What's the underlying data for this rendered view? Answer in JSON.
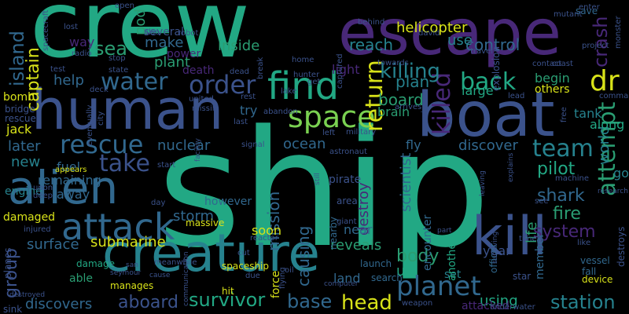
{
  "palette": {
    "background": "#000000",
    "teal": "#22a884",
    "green": "#2a9d72",
    "lightgreen": "#7ad151",
    "yellow": "#d8e219",
    "blue": "#31688e",
    "indigo": "#3b528b",
    "purple": "#482878",
    "darkpurple": "#440154",
    "cyan": "#26828e"
  },
  "words": [
    {
      "text": "ship",
      "c": "teal"
    },
    {
      "text": "crew",
      "c": "teal"
    },
    {
      "text": "escape",
      "c": "purple"
    },
    {
      "text": "boat",
      "c": "indigo"
    },
    {
      "text": "human",
      "c": "indigo"
    },
    {
      "text": "creature",
      "c": "cyan"
    },
    {
      "text": "find",
      "c": "teal"
    },
    {
      "text": "kill",
      "c": "indigo"
    },
    {
      "text": "alien",
      "c": "blue"
    },
    {
      "text": "attack",
      "c": "blue"
    },
    {
      "text": "space",
      "c": "lightgreen"
    },
    {
      "text": "planet",
      "c": "blue"
    },
    {
      "text": "rescue",
      "c": "blue"
    },
    {
      "text": "take",
      "c": "indigo"
    },
    {
      "text": "water",
      "c": "blue"
    },
    {
      "text": "order",
      "c": "indigo"
    },
    {
      "text": "back",
      "c": "teal"
    },
    {
      "text": "dr",
      "c": "yellow"
    },
    {
      "text": "team",
      "c": "cyan"
    },
    {
      "text": "killed",
      "c": "purple"
    },
    {
      "text": "return",
      "c": "yellow"
    },
    {
      "text": "attempt",
      "c": "green"
    },
    {
      "text": "crash",
      "c": "purple"
    },
    {
      "text": "killing",
      "c": "cyan"
    },
    {
      "text": "sea",
      "c": "green"
    },
    {
      "text": "island",
      "c": "blue"
    },
    {
      "text": "captain",
      "c": "yellow"
    },
    {
      "text": "group",
      "c": "indigo"
    },
    {
      "text": "mission",
      "c": "blue"
    },
    {
      "text": "causing",
      "c": "blue"
    },
    {
      "text": "survivor",
      "c": "teal"
    },
    {
      "text": "base",
      "c": "blue"
    },
    {
      "text": "head",
      "c": "yellow"
    },
    {
      "text": "station",
      "c": "cyan"
    },
    {
      "text": "aboard",
      "c": "indigo"
    },
    {
      "text": "system",
      "c": "purple"
    },
    {
      "text": "body",
      "c": "green"
    },
    {
      "text": "fire",
      "c": "green"
    },
    {
      "text": "shark",
      "c": "blue"
    },
    {
      "text": "pilot",
      "c": "teal"
    },
    {
      "text": "board",
      "c": "green"
    },
    {
      "text": "plan",
      "c": "cyan"
    },
    {
      "text": "submarine",
      "c": "yellow"
    },
    {
      "text": "storm",
      "c": "blue"
    },
    {
      "text": "control",
      "c": "blue"
    },
    {
      "text": "reach",
      "c": "cyan"
    },
    {
      "text": "helicopter",
      "c": "yellow"
    },
    {
      "text": "inside",
      "c": "green"
    },
    {
      "text": "make",
      "c": "blue"
    },
    {
      "text": "pod",
      "c": "green"
    },
    {
      "text": "plant",
      "c": "green"
    },
    {
      "text": "help",
      "c": "blue"
    },
    {
      "text": "later",
      "c": "blue"
    },
    {
      "text": "new",
      "c": "cyan"
    },
    {
      "text": "surface",
      "c": "blue"
    },
    {
      "text": "discovers",
      "c": "blue"
    },
    {
      "text": "ocean",
      "c": "blue"
    },
    {
      "text": "nuclear",
      "c": "blue"
    },
    {
      "text": "destroy",
      "c": "purple"
    },
    {
      "text": "scientist",
      "c": "blue"
    },
    {
      "text": "using",
      "c": "teal"
    },
    {
      "text": "life",
      "c": "green"
    },
    {
      "text": "reveals",
      "c": "green"
    },
    {
      "text": "world",
      "c": "cyan"
    },
    {
      "text": "tank",
      "c": "cyan"
    },
    {
      "text": "along",
      "c": "teal"
    },
    {
      "text": "begin",
      "c": "green"
    },
    {
      "text": "large",
      "c": "teal"
    },
    {
      "text": "discover",
      "c": "blue"
    },
    {
      "text": "use",
      "c": "cyan"
    },
    {
      "text": "brain",
      "c": "green"
    },
    {
      "text": "soon",
      "c": "yellow"
    },
    {
      "text": "force",
      "c": "yellow"
    },
    {
      "text": "land",
      "c": "blue"
    },
    {
      "text": "near",
      "c": "blue"
    },
    {
      "text": "us",
      "c": "teal"
    },
    {
      "text": "set",
      "c": "cyan"
    },
    {
      "text": "another",
      "c": "teal"
    },
    {
      "text": "member",
      "c": "blue"
    },
    {
      "text": "year",
      "c": "indigo"
    },
    {
      "text": "damaged",
      "c": "yellow"
    },
    {
      "text": "remaining",
      "c": "blue"
    },
    {
      "text": "away",
      "c": "blue"
    },
    {
      "text": "fuel",
      "c": "blue"
    },
    {
      "text": "however",
      "c": "blue"
    },
    {
      "text": "damage",
      "c": "teal"
    },
    {
      "text": "able",
      "c": "green"
    },
    {
      "text": "several",
      "c": "indigo"
    },
    {
      "text": "way",
      "c": "purple"
    },
    {
      "text": "power",
      "c": "purple"
    },
    {
      "text": "death",
      "c": "purple"
    },
    {
      "text": "light",
      "c": "purple"
    },
    {
      "text": "try",
      "c": "blue"
    },
    {
      "text": "fly",
      "c": "blue"
    },
    {
      "text": "encounter",
      "c": "blue"
    },
    {
      "text": "others",
      "c": "yellow"
    },
    {
      "text": "jack",
      "c": "yellow"
    },
    {
      "text": "bomb",
      "c": "yellow"
    },
    {
      "text": "engine",
      "c": "cyan"
    },
    {
      "text": "massive",
      "c": "yellow"
    },
    {
      "text": "spaceship",
      "c": "yellow"
    },
    {
      "text": "manages",
      "c": "yellow"
    },
    {
      "text": "launch",
      "c": "blue"
    },
    {
      "text": "search",
      "c": "blue"
    },
    {
      "text": "attacked",
      "c": "purple"
    },
    {
      "text": "officer",
      "c": "blue"
    },
    {
      "text": "go",
      "c": "cyan"
    },
    {
      "text": "fall",
      "c": "blue"
    },
    {
      "text": "device",
      "c": "yellow"
    },
    {
      "text": "vessel",
      "c": "blue"
    },
    {
      "text": "destroys",
      "c": "indigo"
    },
    {
      "text": "hit",
      "c": "yellow"
    },
    {
      "text": "nearby",
      "c": "blue"
    },
    {
      "text": "planes",
      "c": "indigo"
    },
    {
      "text": "save",
      "c": "blue"
    },
    {
      "text": "mutant",
      "c": "indigo"
    },
    {
      "text": "david",
      "c": "indigo"
    },
    {
      "text": "robot",
      "c": "indigo"
    },
    {
      "text": "towards",
      "c": "indigo"
    },
    {
      "text": "arrives",
      "c": "indigo"
    },
    {
      "text": "signal",
      "c": "indigo"
    },
    {
      "text": "communication",
      "c": "indigo"
    },
    {
      "text": "meanwhile",
      "c": "indigo"
    },
    {
      "text": "lake",
      "c": "indigo"
    },
    {
      "text": "dead",
      "c": "indigo"
    },
    {
      "text": "united",
      "c": "indigo"
    },
    {
      "text": "missile",
      "c": "indigo"
    },
    {
      "text": "bridge",
      "c": "indigo"
    },
    {
      "text": "rescued",
      "c": "indigo"
    },
    {
      "text": "injured",
      "c": "indigo"
    },
    {
      "text": "sink",
      "c": "indigo"
    },
    {
      "text": "weapon",
      "c": "indigo"
    },
    {
      "text": "underwater",
      "c": "indigo"
    },
    {
      "text": "star",
      "c": "indigo"
    },
    {
      "text": "cut",
      "c": "indigo"
    },
    {
      "text": "oil",
      "c": "indigo"
    },
    {
      "text": "flying",
      "c": "indigo"
    },
    {
      "text": "due",
      "c": "indigo"
    },
    {
      "text": "reactor",
      "c": "indigo"
    },
    {
      "text": "giant",
      "c": "indigo"
    },
    {
      "text": "area",
      "c": "indigo"
    },
    {
      "text": "pirate",
      "c": "indigo"
    },
    {
      "text": "explosion",
      "c": "indigo"
    },
    {
      "text": "project",
      "c": "indigo"
    },
    {
      "text": "monster",
      "c": "indigo"
    },
    {
      "text": "enter",
      "c": "indigo"
    },
    {
      "text": "coast",
      "c": "indigo"
    },
    {
      "text": "contact",
      "c": "indigo"
    },
    {
      "text": "lead",
      "c": "indigo"
    },
    {
      "text": "command",
      "c": "indigo"
    },
    {
      "text": "travel",
      "c": "indigo"
    },
    {
      "text": "captured",
      "c": "indigo"
    },
    {
      "text": "behind",
      "c": "indigo"
    },
    {
      "text": "open",
      "c": "indigo"
    },
    {
      "text": "spacecraft",
      "c": "indigo"
    },
    {
      "text": "lost",
      "c": "indigo"
    },
    {
      "text": "radio",
      "c": "indigo"
    },
    {
      "text": "also",
      "c": "indigo"
    },
    {
      "text": "stop",
      "c": "indigo"
    },
    {
      "text": "state",
      "c": "indigo"
    },
    {
      "text": "test",
      "c": "indigo"
    },
    {
      "text": "home",
      "c": "indigo"
    },
    {
      "text": "get",
      "c": "indigo"
    },
    {
      "text": "rest",
      "c": "indigo"
    },
    {
      "text": "deck",
      "c": "indigo"
    },
    {
      "text": "city",
      "c": "indigo"
    },
    {
      "text": "eventually",
      "c": "indigo"
    },
    {
      "text": "abandon",
      "c": "indigo"
    },
    {
      "text": "last",
      "c": "indigo"
    },
    {
      "text": "left",
      "c": "indigo"
    },
    {
      "text": "military",
      "c": "indigo"
    },
    {
      "text": "astronaut",
      "c": "indigo"
    },
    {
      "text": "arrive",
      "c": "indigo"
    },
    {
      "text": "free",
      "c": "indigo"
    },
    {
      "text": "hunter",
      "c": "indigo"
    },
    {
      "text": "break",
      "c": "indigo"
    },
    {
      "text": "facility",
      "c": "indigo"
    },
    {
      "text": "upon",
      "c": "indigo"
    },
    {
      "text": "deep",
      "c": "indigo"
    },
    {
      "text": "appears",
      "c": "yellow"
    },
    {
      "text": "start",
      "c": "indigo"
    },
    {
      "text": "day",
      "c": "indigo"
    },
    {
      "text": "machine",
      "c": "indigo"
    },
    {
      "text": "see",
      "c": "indigo"
    },
    {
      "text": "explains",
      "c": "indigo"
    },
    {
      "text": "leaving",
      "c": "indigo"
    },
    {
      "text": "research",
      "c": "indigo"
    },
    {
      "text": "time",
      "c": "indigo"
    },
    {
      "text": "like",
      "c": "indigo"
    },
    {
      "text": "part",
      "c": "indigo"
    },
    {
      "text": "cause",
      "c": "indigo"
    },
    {
      "text": "san",
      "c": "indigo"
    },
    {
      "text": "seymour",
      "c": "indigo"
    },
    {
      "text": "computer",
      "c": "indigo"
    },
    {
      "text": "still",
      "c": "indigo"
    },
    {
      "text": "surviving",
      "c": "indigo"
    },
    {
      "text": "destroyed",
      "c": "indigo"
    }
  ]
}
